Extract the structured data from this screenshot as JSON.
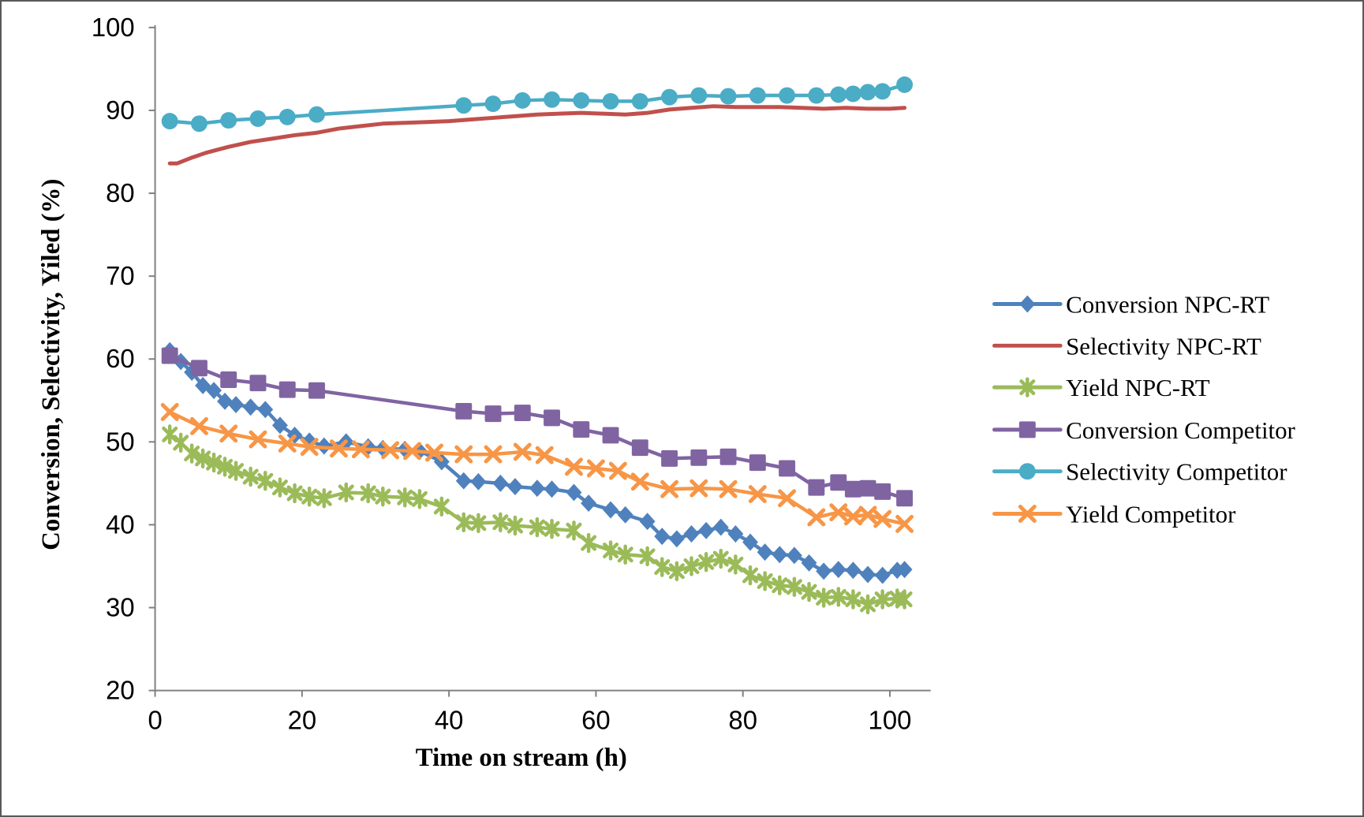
{
  "figure": {
    "background": "#ffffff",
    "border_color": "#595959",
    "axis_line_color": "#808080",
    "text_color": "#000000"
  },
  "chart_data": {
    "type": "line",
    "title": "",
    "xlabel": "Time on stream (h)",
    "ylabel": "Conversion, Selectivity, Yiled (%)",
    "xlim": [
      0,
      105.5
    ],
    "ylim": [
      20,
      100
    ],
    "xticks": [
      0,
      20,
      40,
      60,
      80,
      100
    ],
    "yticks": [
      20,
      30,
      40,
      50,
      60,
      70,
      80,
      90,
      100
    ],
    "grid": false,
    "legend_position": "right",
    "series": [
      {
        "name": "Conversion NPC-RT",
        "color": "#4F81BD",
        "marker": "diamond",
        "x": [
          2,
          3.5,
          5,
          6.5,
          8,
          9.5,
          11,
          13,
          15,
          17,
          19,
          21,
          23,
          26,
          29,
          31,
          34,
          36,
          39,
          42,
          44,
          47,
          49,
          52,
          54,
          57,
          59,
          62,
          64,
          67,
          69,
          71,
          73,
          75,
          77,
          79,
          81,
          83,
          85,
          87,
          89,
          91,
          93,
          95,
          97,
          99,
          101,
          102
        ],
        "y": [
          61.0,
          59.7,
          58.4,
          56.8,
          56.2,
          54.9,
          54.5,
          54.2,
          53.9,
          52.0,
          50.8,
          50.1,
          49.5,
          50.0,
          49.4,
          49.2,
          49.1,
          48.9,
          47.6,
          45.3,
          45.2,
          45.0,
          44.6,
          44.4,
          44.3,
          43.9,
          42.6,
          41.8,
          41.2,
          40.4,
          38.6,
          38.3,
          38.9,
          39.3,
          39.7,
          38.9,
          37.9,
          36.7,
          36.4,
          36.3,
          35.4,
          34.4,
          34.6,
          34.5,
          34.0,
          33.9,
          34.5,
          34.6
        ]
      },
      {
        "name": "Selectivity NPC-RT",
        "color": "#C0504D",
        "marker": "none",
        "x": [
          2,
          3,
          5,
          7,
          10,
          13,
          16,
          19,
          22,
          25,
          28,
          31,
          34,
          37,
          40,
          43,
          46,
          49,
          52,
          55,
          58,
          61,
          64,
          67,
          70,
          73,
          76,
          79,
          82,
          85,
          88,
          91,
          94,
          97,
          100,
          102
        ],
        "y": [
          83.6,
          83.6,
          84.3,
          84.9,
          85.6,
          86.2,
          86.6,
          87.0,
          87.3,
          87.8,
          88.1,
          88.4,
          88.5,
          88.6,
          88.7,
          88.9,
          89.1,
          89.3,
          89.5,
          89.6,
          89.7,
          89.6,
          89.5,
          89.7,
          90.1,
          90.3,
          90.5,
          90.4,
          90.4,
          90.4,
          90.3,
          90.2,
          90.3,
          90.2,
          90.2,
          90.3
        ]
      },
      {
        "name": "Yield NPC-RT",
        "color": "#9BBB59",
        "marker": "asterisk",
        "x": [
          2,
          3.5,
          5,
          6.5,
          8,
          9.5,
          11,
          13,
          15,
          17,
          19,
          21,
          23,
          26,
          29,
          31,
          34,
          36,
          39,
          42,
          44,
          47,
          49,
          52,
          54,
          57,
          59,
          62,
          64,
          67,
          69,
          71,
          73,
          75,
          77,
          79,
          81,
          83,
          85,
          87,
          89,
          91,
          93,
          95,
          97,
          99,
          101,
          102
        ],
        "y": [
          50.9,
          49.9,
          48.6,
          48.0,
          47.5,
          47.0,
          46.5,
          45.8,
          45.3,
          44.5,
          43.8,
          43.4,
          43.2,
          43.9,
          43.8,
          43.4,
          43.3,
          43.1,
          42.2,
          40.3,
          40.2,
          40.3,
          39.9,
          39.7,
          39.5,
          39.3,
          37.8,
          36.9,
          36.4,
          36.2,
          34.9,
          34.4,
          35.0,
          35.5,
          35.9,
          35.2,
          33.9,
          33.2,
          32.7,
          32.5,
          31.9,
          31.2,
          31.3,
          31.0,
          30.4,
          31.0,
          31.1,
          31.0
        ]
      },
      {
        "name": "Conversion Competitor",
        "color": "#8064A2",
        "marker": "square",
        "x": [
          2,
          6,
          10,
          14,
          18,
          22,
          42,
          46,
          50,
          54,
          58,
          62,
          66,
          70,
          74,
          78,
          82,
          86,
          90,
          93,
          95,
          97,
          99,
          102
        ],
        "y": [
          60.4,
          58.9,
          57.5,
          57.1,
          56.3,
          56.2,
          53.7,
          53.4,
          53.5,
          52.9,
          51.5,
          50.8,
          49.3,
          48.0,
          48.1,
          48.2,
          47.5,
          46.8,
          44.5,
          45.1,
          44.3,
          44.4,
          44.0,
          43.2
        ]
      },
      {
        "name": "Selectivity Competitor",
        "color": "#4BACC6",
        "marker": "circle",
        "x": [
          2,
          6,
          10,
          14,
          18,
          22,
          42,
          46,
          50,
          54,
          58,
          62,
          66,
          70,
          74,
          78,
          82,
          86,
          90,
          93,
          95,
          97,
          99,
          102
        ],
        "y": [
          88.7,
          88.4,
          88.8,
          89.0,
          89.2,
          89.5,
          90.6,
          90.8,
          91.2,
          91.3,
          91.2,
          91.1,
          91.1,
          91.6,
          91.8,
          91.7,
          91.8,
          91.8,
          91.8,
          91.9,
          92.0,
          92.2,
          92.3,
          93.1
        ]
      },
      {
        "name": "Yield Competitor",
        "color": "#F79646",
        "marker": "x",
        "x": [
          2,
          6,
          10,
          14,
          18,
          21,
          25,
          28,
          32,
          35,
          38,
          42,
          46,
          50,
          53,
          57,
          60,
          63,
          66,
          70,
          74,
          78,
          82,
          86,
          90,
          93,
          95,
          97,
          99,
          102
        ],
        "y": [
          53.6,
          51.9,
          51.0,
          50.3,
          49.8,
          49.4,
          49.2,
          49.1,
          49.0,
          48.9,
          48.7,
          48.5,
          48.5,
          48.8,
          48.4,
          47.0,
          46.8,
          46.5,
          45.2,
          44.3,
          44.4,
          44.3,
          43.7,
          43.2,
          40.9,
          41.5,
          41.0,
          41.2,
          40.7,
          40.1
        ]
      }
    ]
  }
}
